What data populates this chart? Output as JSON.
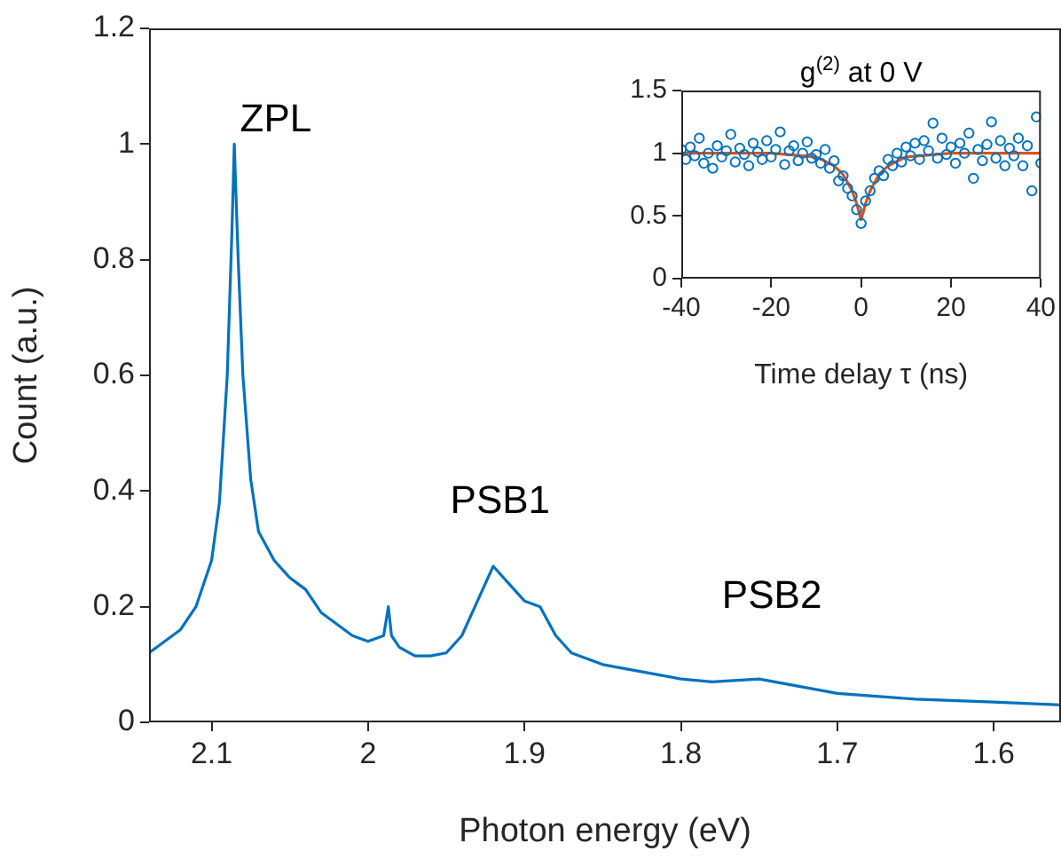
{
  "chart_data": [
    {
      "type": "line",
      "xlabel": "Photon energy (eV)",
      "ylabel": "Count (a.u.)",
      "xlim": [
        2.14,
        1.557
      ],
      "xticks": [
        2.1,
        2,
        1.9,
        1.8,
        1.7,
        1.6
      ],
      "ylim": [
        0,
        1.2
      ],
      "yticks": [
        0,
        0.2,
        0.4,
        0.6,
        0.8,
        1,
        1.2
      ],
      "grid": false,
      "legend": false,
      "marker": "none",
      "series": [
        {
          "color": "#0072bd",
          "x": [
            2.14,
            2.13,
            2.12,
            2.11,
            2.1,
            2.095,
            2.09,
            2.087,
            2.0855,
            2.083,
            2.08,
            2.075,
            2.07,
            2.06,
            2.05,
            2.045,
            2.04,
            2.03,
            2.02,
            2.01,
            2.0,
            1.99,
            1.987,
            1.985,
            1.98,
            1.97,
            1.96,
            1.95,
            1.94,
            1.93,
            1.92,
            1.91,
            1.9,
            1.89,
            1.88,
            1.87,
            1.85,
            1.83,
            1.8,
            1.78,
            1.75,
            1.73,
            1.7,
            1.65,
            1.6,
            1.557
          ],
          "values": [
            0.12,
            0.14,
            0.16,
            0.2,
            0.28,
            0.38,
            0.6,
            0.85,
            1.0,
            0.8,
            0.6,
            0.42,
            0.33,
            0.28,
            0.25,
            0.24,
            0.23,
            0.19,
            0.17,
            0.15,
            0.14,
            0.15,
            0.2,
            0.15,
            0.13,
            0.115,
            0.115,
            0.12,
            0.15,
            0.21,
            0.27,
            0.24,
            0.21,
            0.2,
            0.15,
            0.12,
            0.1,
            0.09,
            0.075,
            0.07,
            0.075,
            0.065,
            0.05,
            0.04,
            0.035,
            0.03
          ]
        }
      ],
      "annotations": [
        "ZPL",
        "PSB1",
        "PSB2"
      ]
    },
    {
      "type": "scatter",
      "title": "g$^{(2)}$ at 0 V",
      "xlabel": "Time delay τ (ns)",
      "xlim": [
        -40,
        40
      ],
      "xticks": [
        -40,
        -20,
        0,
        20,
        40
      ],
      "ylim": [
        0,
        1.5
      ],
      "yticks": [
        0,
        0.5,
        1,
        1.5
      ],
      "grid": false,
      "legend": false,
      "series": [
        {
          "marker": "circle",
          "color": "#0072bd",
          "x": [
            -40,
            -39,
            -38,
            -37,
            -36,
            -35,
            -34,
            -33,
            -32,
            -31,
            -30,
            -29,
            -28,
            -27,
            -26,
            -25,
            -24,
            -23,
            -22,
            -21,
            -20,
            -19,
            -18,
            -17,
            -16,
            -15,
            -14,
            -13,
            -12,
            -11,
            -10,
            -9,
            -8,
            -7,
            -6,
            -5,
            -4,
            -3,
            -2,
            -1,
            0,
            1,
            2,
            3,
            4,
            5,
            6,
            7,
            8,
            9,
            10,
            11,
            12,
            13,
            14,
            15,
            16,
            17,
            18,
            19,
            20,
            21,
            22,
            23,
            24,
            25,
            26,
            27,
            28,
            29,
            30,
            31,
            32,
            33,
            34,
            35,
            36,
            37,
            38,
            39,
            40
          ],
          "values": [
            1.03,
            0.95,
            1.05,
            0.98,
            1.12,
            0.92,
            1.0,
            0.88,
            1.06,
            0.97,
            1.02,
            1.15,
            0.93,
            1.04,
            0.99,
            0.9,
            1.08,
            1.01,
            0.95,
            1.1,
            0.97,
            1.03,
            1.17,
            0.91,
            1.02,
            1.06,
            0.94,
            1.0,
            1.09,
            0.96,
            0.99,
            0.92,
            1.03,
            0.88,
            0.94,
            0.78,
            0.82,
            0.72,
            0.66,
            0.55,
            0.44,
            0.62,
            0.7,
            0.8,
            0.86,
            0.82,
            0.95,
            0.9,
            1.0,
            0.93,
            1.05,
            0.98,
            1.08,
            0.95,
            1.1,
            1.02,
            1.24,
            0.96,
            1.12,
            0.99,
            1.05,
            0.92,
            1.08,
            1.0,
            1.16,
            0.8,
            1.03,
            0.94,
            1.07,
            1.25,
            0.96,
            1.1,
            0.9,
            1.04,
            0.98,
            1.12,
            0.9,
            1.06,
            0.7,
            1.29,
            0.92
          ]
        },
        {
          "type": "line",
          "marker": "none",
          "color": "#d95319",
          "x": [
            -40,
            -20,
            -10,
            -6,
            -4,
            -2,
            -1,
            0,
            1,
            2,
            4,
            6,
            10,
            20,
            40
          ],
          "values": [
            1,
            1,
            0.97,
            0.9,
            0.83,
            0.7,
            0.6,
            0.47,
            0.6,
            0.7,
            0.83,
            0.9,
            0.97,
            1,
            1
          ]
        }
      ]
    }
  ]
}
